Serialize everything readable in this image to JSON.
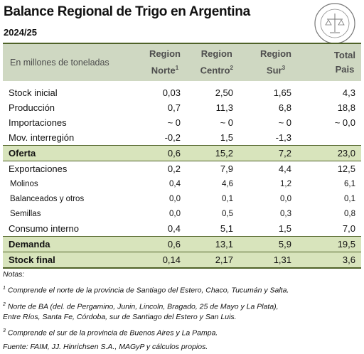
{
  "header": {
    "title": "Balance Regional de Trigo en Argentina",
    "subtitle": "2024/25"
  },
  "table": {
    "columns": [
      {
        "text": "En millones de toneladas"
      },
      {
        "line1": "Region",
        "line2": "Norte",
        "sup": "1"
      },
      {
        "line1": "Region",
        "line2": "Centro",
        "sup": "2"
      },
      {
        "line1": "Region",
        "line2": "Sur",
        "sup": "3"
      },
      {
        "line1": "Total",
        "line2": "Pais"
      }
    ],
    "rows": [
      [
        "Stock inicial",
        "0,03",
        "2,50",
        "1,65",
        "4,3"
      ],
      [
        "Producción",
        "0,7",
        "11,3",
        "6,8",
        "18,8"
      ],
      [
        "Importaciones",
        "~ 0",
        "~ 0",
        "~ 0",
        "~ 0,0"
      ],
      [
        "Mov. interregión",
        "-0,2",
        "1,5",
        "-1,3",
        null
      ],
      [
        "Oferta",
        "0,6",
        "15,2",
        "7,2",
        "23,0"
      ],
      [
        "Exportaciones",
        "0,2",
        "7,9",
        "4,4",
        "12,5"
      ],
      [
        "Molinos",
        "0,4",
        "4,6",
        "1,2",
        "6,1"
      ],
      [
        "Balanceados y otros",
        "0,0",
        "0,1",
        "0,0",
        "0,1"
      ],
      [
        "Semillas",
        "0,0",
        "0,5",
        "0,3",
        "0,8"
      ],
      [
        "Consumo interno",
        "0,4",
        "5,1",
        "1,5",
        "7,0"
      ],
      [
        "Demanda",
        "0,6",
        "13,1",
        "5,9",
        "19,5"
      ],
      [
        "Stock final",
        "0,14",
        "2,17",
        "1,31",
        "3,6"
      ]
    ]
  },
  "notes": {
    "title": "Notas:",
    "items": [
      {
        "sup": "1",
        "lines": [
          "Comprende el norte de la provincia de Santiago del Estero, Chaco, Tucumán y Salta."
        ]
      },
      {
        "sup": "2",
        "lines": [
          "Norte de BA (del. de Pergamino, Junin, Lincoln, Bragado, 25 de Mayo y La Plata),",
          "Entre Ríos, Santa Fe, Córdoba, sur de Santiago del Estero y San Luis."
        ]
      },
      {
        "sup": "3",
        "lines": [
          "Comprende el sur de la provincia de Buenos Aires y La Pampa."
        ]
      }
    ],
    "source": "Fuente: FAIM, JJ. Hinrichsen S.A., MAGyP y cálculos propios."
  }
}
